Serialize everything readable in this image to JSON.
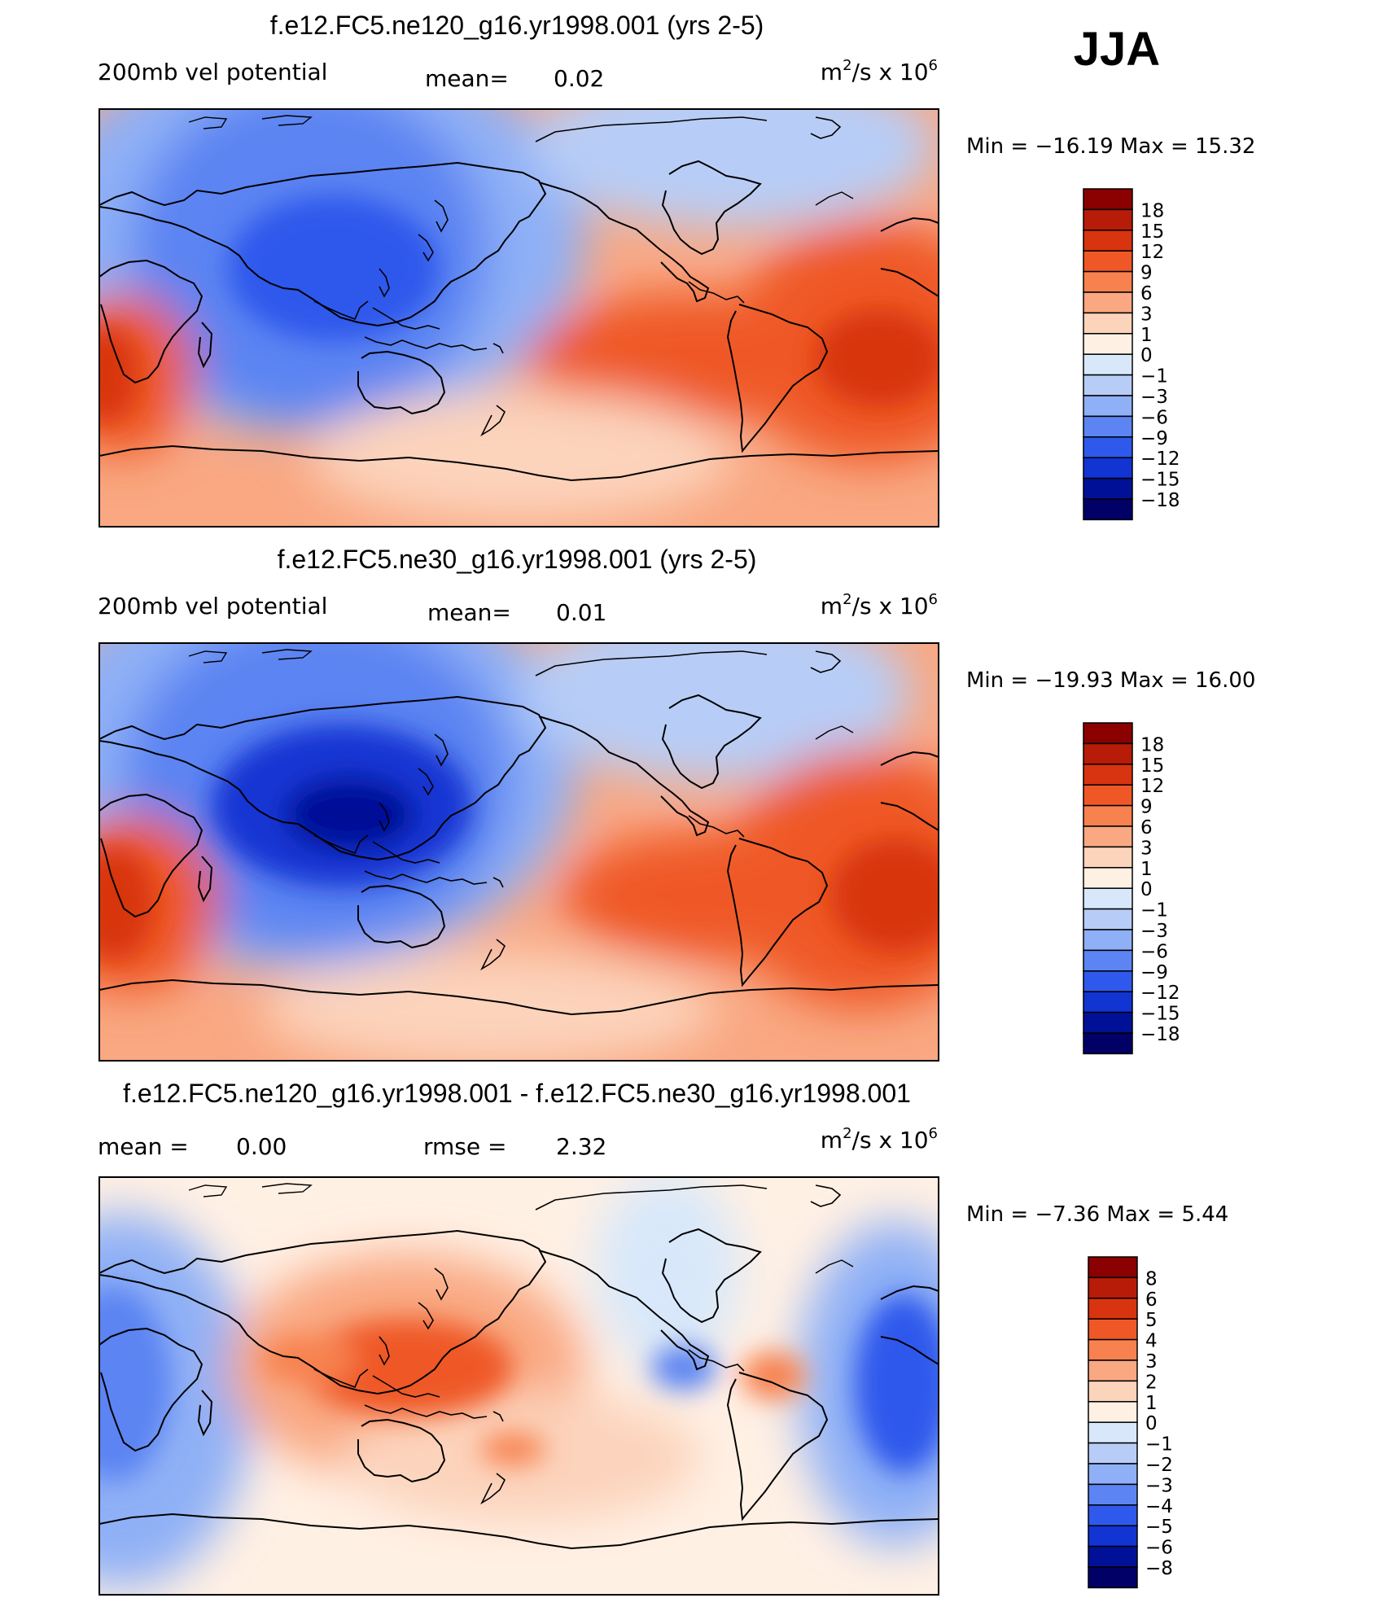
{
  "season": "JJA",
  "chart_data": [
    {
      "type": "contour-map",
      "title": "f.e12.FC5.ne120_g16.yr1998.001 (yrs 2-5)",
      "variable": "200mb vel potential",
      "units": "m²/s x 10⁶",
      "units_base": "m",
      "units_sup": "2",
      "units_mid": "/s x 10",
      "units_exp": "6",
      "stat1_label": "mean=",
      "stat1_value": "0.02",
      "minmax_label": "Min = −16.19 Max = 15.32",
      "min": -16.19,
      "max": 15.32,
      "colorbar": {
        "levels": [
          "18",
          "15",
          "12",
          "9",
          "6",
          "3",
          "1",
          "0",
          "−1",
          "−3",
          "−6",
          "−9",
          "−12",
          "−15",
          "−18"
        ],
        "colors": [
          "#8b0000",
          "#b71c08",
          "#d8340f",
          "#ef5826",
          "#f7824f",
          "#f9a882",
          "#fcd3bb",
          "#fff0e4",
          "#d8e8fa",
          "#b7cdf7",
          "#8fb0f6",
          "#5c84f2",
          "#2f59ec",
          "#1234d3",
          "#001197",
          "#000066"
        ]
      }
    },
    {
      "type": "contour-map",
      "title": "f.e12.FC5.ne30_g16.yr1998.001 (yrs 2-5)",
      "variable": "200mb vel potential",
      "units": "m²/s x 10⁶",
      "units_base": "m",
      "units_sup": "2",
      "units_mid": "/s x 10",
      "units_exp": "6",
      "stat1_label": "mean=",
      "stat1_value": "0.01",
      "minmax_label": "Min = −19.93 Max = 16.00",
      "min": -19.93,
      "max": 16.0,
      "colorbar": {
        "levels": [
          "18",
          "15",
          "12",
          "9",
          "6",
          "3",
          "1",
          "0",
          "−1",
          "−3",
          "−6",
          "−9",
          "−12",
          "−15",
          "−18"
        ],
        "colors": [
          "#8b0000",
          "#b71c08",
          "#d8340f",
          "#ef5826",
          "#f7824f",
          "#f9a882",
          "#fcd3bb",
          "#fff0e4",
          "#d8e8fa",
          "#b7cdf7",
          "#8fb0f6",
          "#5c84f2",
          "#2f59ec",
          "#1234d3",
          "#001197",
          "#000066"
        ]
      }
    },
    {
      "type": "contour-map",
      "title": "f.e12.FC5.ne120_g16.yr1998.001 - f.e12.FC5.ne30_g16.yr1998.001",
      "variable": "",
      "units": "m²/s x 10⁶",
      "units_base": "m",
      "units_sup": "2",
      "units_mid": "/s x 10",
      "units_exp": "6",
      "stat0_label": "mean =",
      "stat0_value": "0.00",
      "stat1_label": "rmse =",
      "stat1_value": "2.32",
      "minmax_label": "Min = −7.36 Max = 5.44",
      "min": -7.36,
      "max": 5.44,
      "colorbar": {
        "levels": [
          "8",
          "6",
          "5",
          "4",
          "3",
          "2",
          "1",
          "0",
          "−1",
          "−2",
          "−3",
          "−4",
          "−5",
          "−6",
          "−8"
        ],
        "colors": [
          "#8b0000",
          "#b71c08",
          "#d8340f",
          "#ef5826",
          "#f7824f",
          "#f9a882",
          "#fcd3bb",
          "#fff0e4",
          "#d8e8fa",
          "#b7cdf7",
          "#8fb0f6",
          "#5c84f2",
          "#2f59ec",
          "#1234d3",
          "#001197",
          "#000066"
        ]
      }
    }
  ]
}
